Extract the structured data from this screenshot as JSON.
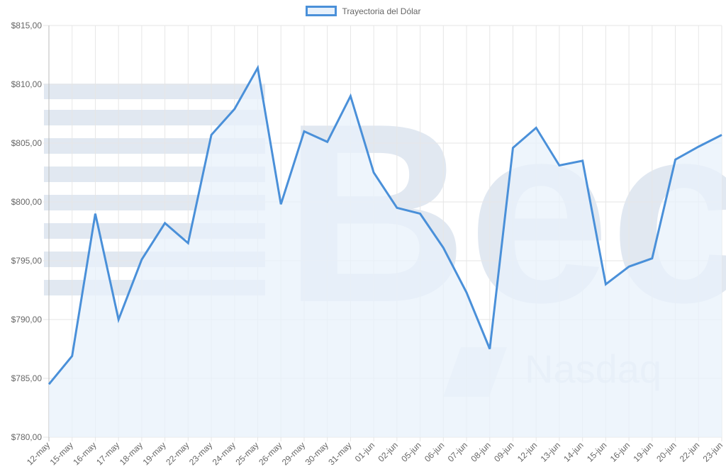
{
  "chart_data": {
    "type": "line",
    "title": "",
    "legend": {
      "position": "top",
      "entries": [
        "Trayectoria del Dólar"
      ]
    },
    "xlabel": "",
    "ylabel": "",
    "ylim": [
      780,
      815
    ],
    "yticks": [
      "$780,00",
      "$785,00",
      "$790,00",
      "$795,00",
      "$800,00",
      "$805,00",
      "$810,00",
      "$815,00"
    ],
    "grid": true,
    "fill": true,
    "colors": {
      "line": "#4a90d9",
      "fill": "#e8f1fb",
      "grid": "#e6e6e6"
    },
    "categories": [
      "12-may",
      "15-may",
      "16-may",
      "17-may",
      "18-may",
      "19-may",
      "22-may",
      "23-may",
      "24-may",
      "25-may",
      "26-may",
      "29-may",
      "30-may",
      "31-may",
      "01-jun",
      "02-jun",
      "05-jun",
      "06-jun",
      "07-jun",
      "08-jun",
      "09-jun",
      "12-jun",
      "13-jun",
      "14-jun",
      "15-jun",
      "16-jun",
      "19-jun",
      "20-jun",
      "22-jun",
      "23-jun"
    ],
    "series": [
      {
        "name": "Trayectoria del Dólar",
        "values": [
          784.5,
          786.9,
          799.0,
          790.0,
          795.1,
          798.2,
          796.5,
          805.7,
          807.9,
          811.4,
          799.8,
          806.0,
          805.1,
          809.0,
          802.5,
          799.5,
          799.0,
          796.1,
          792.3,
          787.5,
          804.6,
          806.3,
          803.1,
          803.5,
          793.0,
          794.5,
          795.2,
          803.6,
          804.7,
          805.7
        ]
      }
    ]
  },
  "legend": {
    "label": "Trayectoria del Dólar"
  },
  "watermark": {
    "text_large": "Bec",
    "text_small": "Nasdaq"
  }
}
